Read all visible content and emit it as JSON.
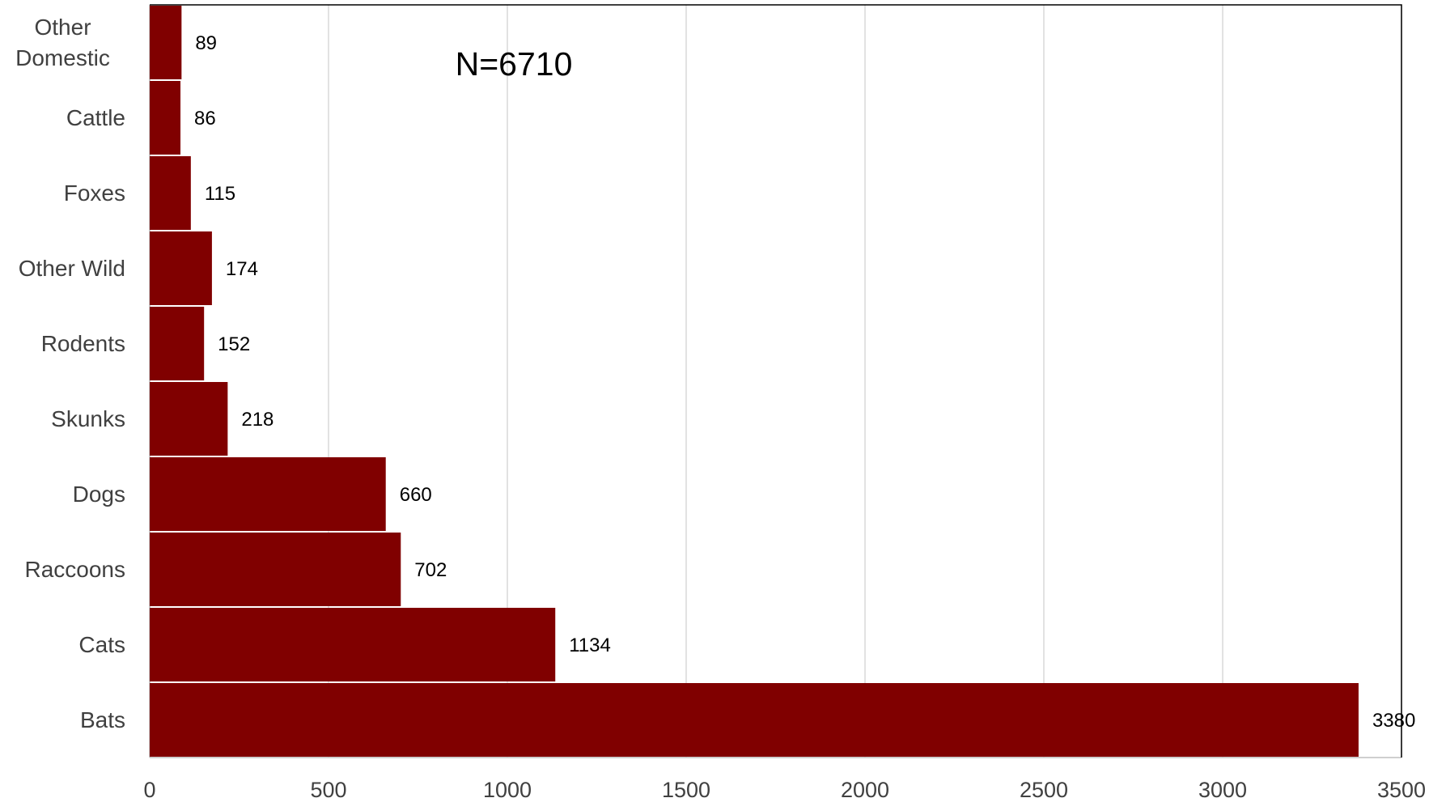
{
  "chart_data": {
    "type": "barh",
    "annotation": "N=6710",
    "categories": [
      "Other Domestic",
      "Cattle",
      "Foxes",
      "Other Wild",
      "Rodents",
      "Skunks",
      "Dogs",
      "Raccoons",
      "Cats",
      "Bats"
    ],
    "values": [
      89,
      86,
      115,
      174,
      152,
      218,
      660,
      702,
      1134,
      3380
    ],
    "color": "#800000",
    "xlim": [
      0,
      3500
    ],
    "xticks": [
      0,
      500,
      1000,
      1500,
      2000,
      2500,
      3000,
      3500
    ],
    "grid": true
  }
}
